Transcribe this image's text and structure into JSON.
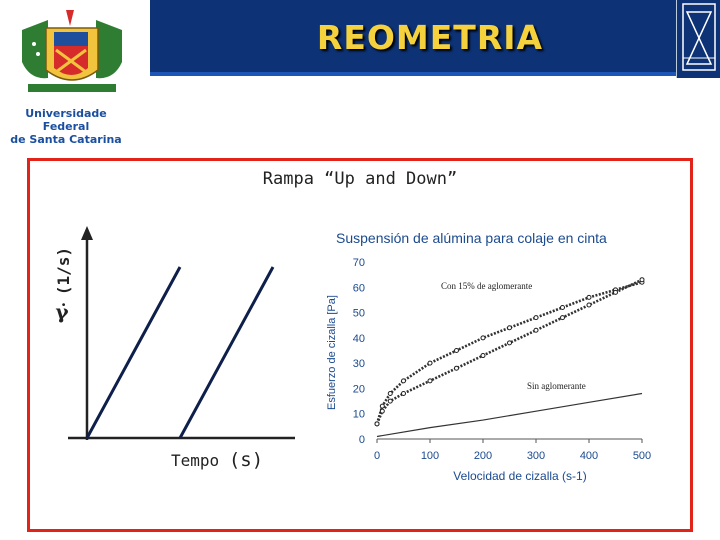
{
  "header": {
    "title": "REOMETRIA"
  },
  "logo": {
    "line1": "Universidade Federal",
    "line2": "de Santa Catarina"
  },
  "colors": {
    "header_bg": "#0d3275",
    "title": "#f5d23d",
    "frame": "#e2231a",
    "plot_text": "#1b4a8f"
  },
  "slide": {
    "subtitle": "Rampa “Up and Down”",
    "ramp_ylabel": "(1/s)",
    "ramp_xlabel": "Tempo",
    "ramp_xunit": "(s)"
  },
  "chart_data": [
    {
      "type": "line",
      "title": "",
      "xlabel": "Tempo (s)",
      "ylabel": "(1/s)",
      "series": [
        {
          "x": [
            0,
            1,
            2,
            3
          ],
          "values": [
            0,
            1,
            0,
            1
          ]
        }
      ]
    },
    {
      "type": "line",
      "title": "Suspensión de alúmina para colaje en cinta",
      "xlabel": "Velocidad de cizalla (s-1)",
      "ylabel": "Esfuerzo de cizalla [Pa]",
      "xlim": [
        0,
        500
      ],
      "ylim": [
        0,
        70
      ],
      "xticks": [
        "0",
        "100",
        "200",
        "300",
        "400",
        "500"
      ],
      "yticks": [
        "0",
        "10",
        "20",
        "30",
        "40",
        "50",
        "60",
        "70"
      ],
      "series": [
        {
          "name": "Con 15% de aglomerante",
          "x": [
            0,
            10,
            25,
            50,
            100,
            150,
            200,
            250,
            300,
            350,
            400,
            450,
            500
          ],
          "values": [
            6,
            13,
            18,
            23,
            30,
            35,
            40,
            44,
            48,
            52,
            56,
            59,
            62
          ]
        },
        {
          "x": [
            0,
            10,
            25,
            50,
            100,
            150,
            200,
            250,
            300,
            350,
            400,
            450,
            500
          ],
          "values": [
            6,
            11,
            15,
            18,
            23,
            28,
            33,
            38,
            43,
            48,
            53,
            58,
            63
          ]
        },
        {
          "name": "Sin aglomerante",
          "x": [
            0,
            100,
            200,
            300,
            400,
            500
          ],
          "values": [
            1,
            4.5,
            7.5,
            11,
            14.5,
            18
          ]
        }
      ]
    }
  ]
}
